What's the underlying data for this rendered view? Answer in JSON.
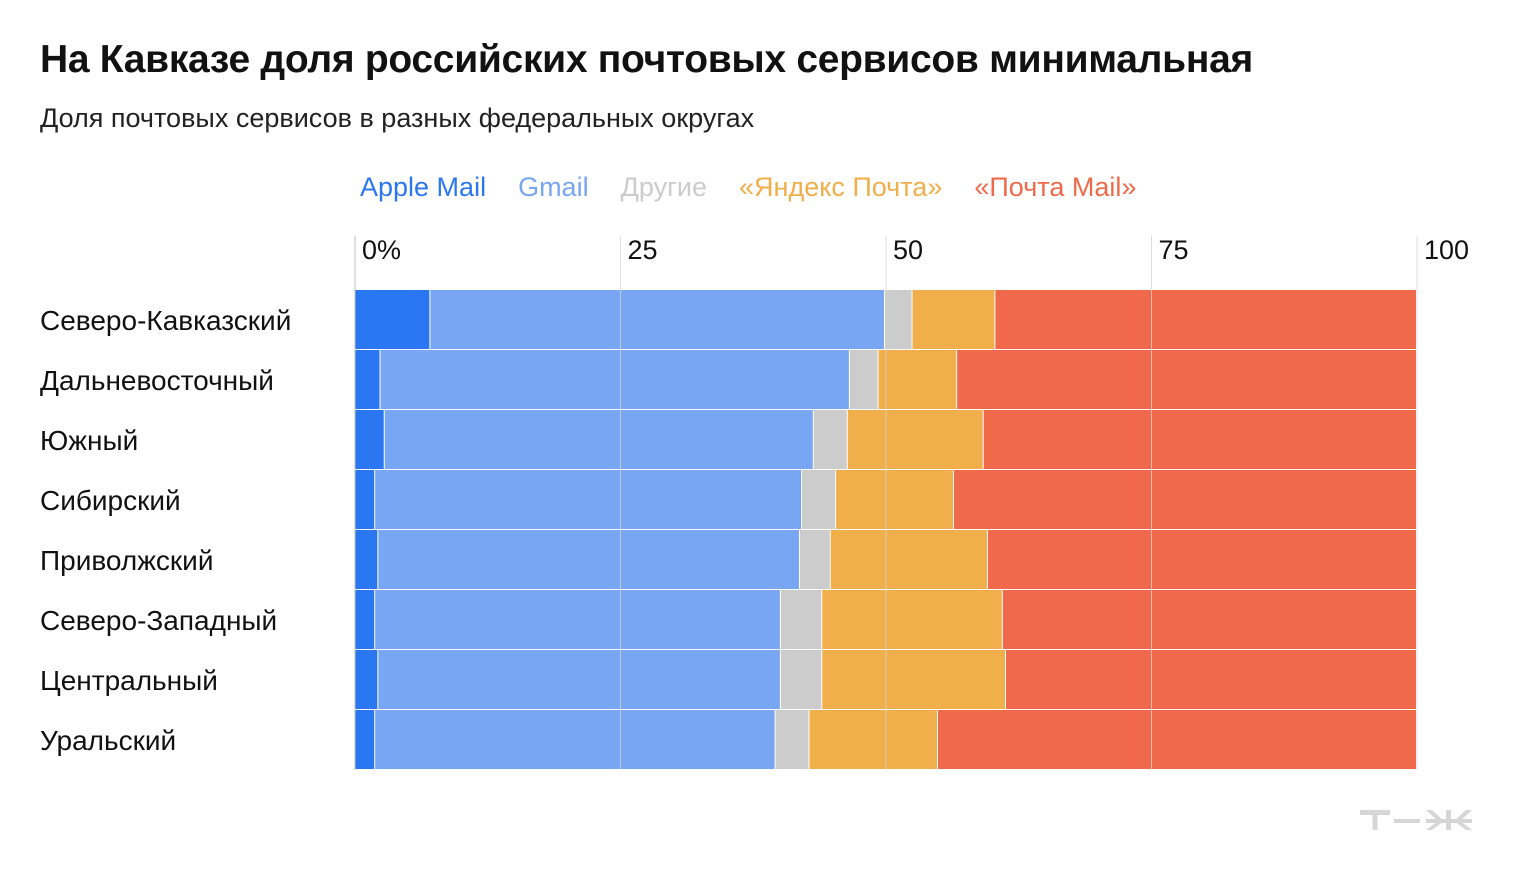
{
  "chart_data": {
    "type": "bar",
    "orientation": "horizontal",
    "stacked": true,
    "title": "На Кавказе доля российских почтовых сервисов минимальная",
    "subtitle": "Доля почтовых сервисов в разных федеральных округах",
    "xlim": [
      0,
      100
    ],
    "ticks": [
      {
        "value": 0,
        "label": "0%"
      },
      {
        "value": 25,
        "label": "25"
      },
      {
        "value": 50,
        "label": "50"
      },
      {
        "value": 75,
        "label": "75"
      },
      {
        "value": 100,
        "label": "100"
      }
    ],
    "grid": true,
    "legend_position": "top",
    "categories": [
      "Северо-Кавказский",
      "Дальневосточный",
      "Южный",
      "Сибирский",
      "Приволжский",
      "Северо-Западный",
      "Центральный",
      "Уральский"
    ],
    "series": [
      {
        "name": "Apple Mail",
        "color": "#2b77f2",
        "values": [
          7.1,
          2.4,
          2.8,
          1.9,
          2.2,
          1.9,
          2.2,
          1.9
        ]
      },
      {
        "name": "Gmail",
        "color": "#78a6f3",
        "values": [
          42.8,
          44.2,
          40.4,
          40.2,
          39.7,
          38.2,
          37.9,
          37.7
        ]
      },
      {
        "name": "Другие",
        "color": "#cccccc",
        "values": [
          2.6,
          2.7,
          3.2,
          3.2,
          2.9,
          3.9,
          3.9,
          3.2
        ]
      },
      {
        "name": "«Яндекс Почта»",
        "color": "#f0af4a",
        "values": [
          7.8,
          7.4,
          12.8,
          11.1,
          14.8,
          17.0,
          17.3,
          12.1
        ]
      },
      {
        "name": "«Почта Mail»",
        "color": "#f0694a",
        "values": [
          39.7,
          43.3,
          40.8,
          43.6,
          40.4,
          39.0,
          38.7,
          45.1
        ]
      }
    ]
  },
  "brand": {
    "logo": "т—ж",
    "logo_color": "#d6d6d6"
  }
}
